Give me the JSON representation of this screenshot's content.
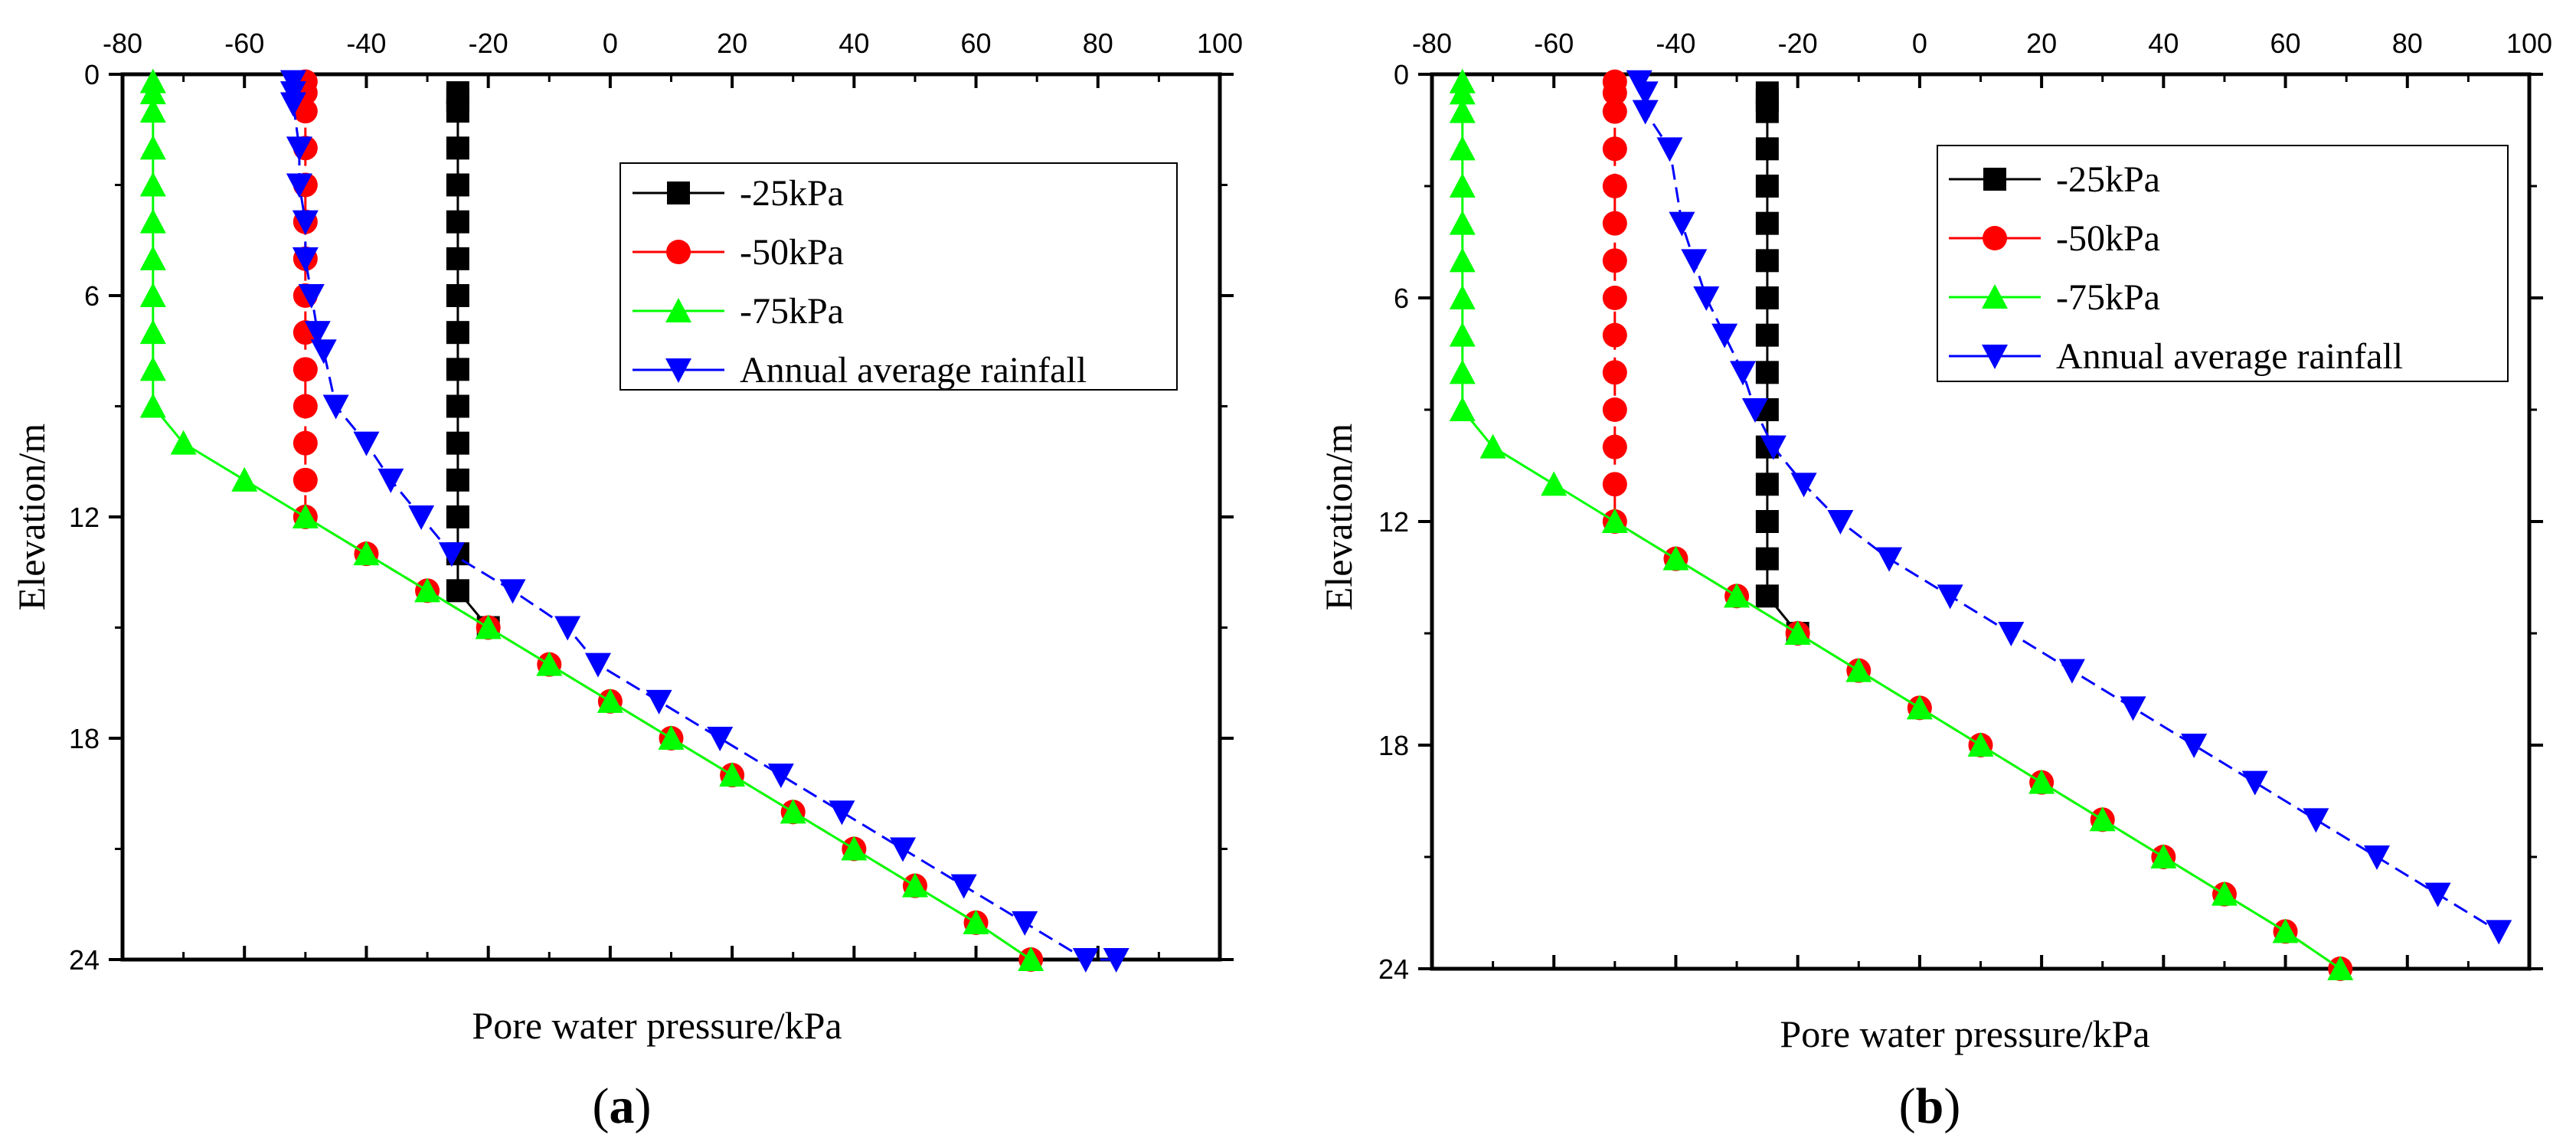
{
  "figure_labels": {
    "a_open": "(",
    "a_letter": "a",
    "a_close": ")",
    "b_open": "(",
    "b_letter": "b",
    "b_close": ")"
  },
  "colors": {
    "-25kPa": "#000000",
    "-50kPa": "#ff0000",
    "-75kPa": "#00ff00",
    "Annual average rainfall": "#0000ff"
  },
  "chart_data": [
    {
      "panel": "a",
      "type": "line",
      "xlabel": "Pore water pressure/kPa",
      "ylabel": "Elevation/m",
      "xlim": [
        -80,
        100
      ],
      "ylim": [
        0,
        24
      ],
      "x_ticks": [
        -80,
        -60,
        -40,
        -20,
        0,
        20,
        40,
        60,
        80,
        100
      ],
      "y_ticks": [
        0,
        6,
        12,
        18,
        24
      ],
      "legend_position": "top-right",
      "series": [
        {
          "name": "-25kPa",
          "marker": "square",
          "dash": "solid",
          "points": [
            [
              -25,
              0.5
            ],
            [
              -25,
              0.7
            ],
            [
              -25,
              1
            ],
            [
              -25,
              2
            ],
            [
              -25,
              3
            ],
            [
              -25,
              4
            ],
            [
              -25,
              5
            ],
            [
              -25,
              6
            ],
            [
              -25,
              7
            ],
            [
              -25,
              8
            ],
            [
              -25,
              9
            ],
            [
              -25,
              10
            ],
            [
              -25,
              11
            ],
            [
              -25,
              12
            ],
            [
              -25,
              13
            ],
            [
              -25,
              14
            ],
            [
              -20,
              15
            ]
          ]
        },
        {
          "name": "-50kPa",
          "marker": "circle",
          "dash": "dashed",
          "points": [
            [
              -50,
              0.2
            ],
            [
              -50,
              0.5
            ],
            [
              -50,
              1
            ],
            [
              -50,
              2
            ],
            [
              -50,
              3
            ],
            [
              -50,
              4
            ],
            [
              -50,
              5
            ],
            [
              -50,
              6
            ],
            [
              -50,
              7
            ],
            [
              -50,
              8
            ],
            [
              -50,
              9
            ],
            [
              -50,
              10
            ],
            [
              -50,
              11
            ],
            [
              -50,
              12
            ],
            [
              -40,
              13
            ],
            [
              -30,
              14
            ],
            [
              -20,
              15
            ],
            [
              -10,
              16
            ],
            [
              0,
              17
            ],
            [
              10,
              18
            ],
            [
              20,
              19
            ],
            [
              30,
              20
            ],
            [
              40,
              21
            ],
            [
              50,
              22
            ],
            [
              60,
              23
            ],
            [
              69,
              24
            ]
          ]
        },
        {
          "name": "-75kPa",
          "marker": "triangle-up",
          "dash": "solid",
          "points": [
            [
              -75,
              0.2
            ],
            [
              -75,
              0.5
            ],
            [
              -75,
              1
            ],
            [
              -75,
              2
            ],
            [
              -75,
              3
            ],
            [
              -75,
              4
            ],
            [
              -75,
              5
            ],
            [
              -75,
              6
            ],
            [
              -75,
              7
            ],
            [
              -75,
              8
            ],
            [
              -75,
              9
            ],
            [
              -70,
              10
            ],
            [
              -60,
              11
            ],
            [
              -50,
              12
            ],
            [
              -40,
              13
            ],
            [
              -30,
              14
            ],
            [
              -20,
              15
            ],
            [
              -10,
              16
            ],
            [
              0,
              17
            ],
            [
              10,
              18
            ],
            [
              20,
              19
            ],
            [
              30,
              20
            ],
            [
              40,
              21
            ],
            [
              50,
              22
            ],
            [
              60,
              23
            ],
            [
              69,
              24
            ]
          ]
        },
        {
          "name": "Annual average rainfall",
          "marker": "triangle-down",
          "dash": "dashed",
          "points": [
            [
              -52,
              0.2
            ],
            [
              -52,
              0.5
            ],
            [
              -52,
              0.8
            ],
            [
              -51,
              2
            ],
            [
              -51,
              3
            ],
            [
              -50,
              4
            ],
            [
              -50,
              5
            ],
            [
              -49,
              6
            ],
            [
              -48,
              7
            ],
            [
              -47,
              7.5
            ],
            [
              -45,
              9
            ],
            [
              -40,
              10
            ],
            [
              -36,
              11
            ],
            [
              -31,
              12
            ],
            [
              -26,
              13
            ],
            [
              -16,
              14
            ],
            [
              -7,
              15
            ],
            [
              -2,
              16
            ],
            [
              8,
              17
            ],
            [
              18,
              18
            ],
            [
              28,
              19
            ],
            [
              38,
              20
            ],
            [
              48,
              21
            ],
            [
              58,
              22
            ],
            [
              68,
              23
            ],
            [
              78,
              24
            ],
            [
              83,
              24
            ]
          ]
        }
      ]
    },
    {
      "panel": "b",
      "type": "line",
      "xlabel": "Pore water pressure/kPa",
      "ylabel": "Elevation/m",
      "xlim": [
        -80,
        100
      ],
      "ylim": [
        0,
        24
      ],
      "x_ticks": [
        -80,
        -60,
        -40,
        -20,
        0,
        20,
        40,
        60,
        80,
        100
      ],
      "y_ticks": [
        0,
        6,
        12,
        18,
        24
      ],
      "legend_position": "top-right",
      "series": [
        {
          "name": "-25kPa",
          "marker": "square",
          "dash": "solid",
          "points": [
            [
              -25,
              0.5
            ],
            [
              -25,
              0.7
            ],
            [
              -25,
              1
            ],
            [
              -25,
              2
            ],
            [
              -25,
              3
            ],
            [
              -25,
              4
            ],
            [
              -25,
              5
            ],
            [
              -25,
              6
            ],
            [
              -25,
              7
            ],
            [
              -25,
              8
            ],
            [
              -25,
              9
            ],
            [
              -25,
              10
            ],
            [
              -25,
              11
            ],
            [
              -25,
              12
            ],
            [
              -25,
              13
            ],
            [
              -25,
              14
            ],
            [
              -20,
              15
            ]
          ]
        },
        {
          "name": "-50kPa",
          "marker": "circle",
          "dash": "dashed",
          "points": [
            [
              -50,
              0.2
            ],
            [
              -50,
              0.5
            ],
            [
              -50,
              1
            ],
            [
              -50,
              2
            ],
            [
              -50,
              3
            ],
            [
              -50,
              4
            ],
            [
              -50,
              5
            ],
            [
              -50,
              6
            ],
            [
              -50,
              7
            ],
            [
              -50,
              8
            ],
            [
              -50,
              9
            ],
            [
              -50,
              10
            ],
            [
              -50,
              11
            ],
            [
              -50,
              12
            ],
            [
              -40,
              13
            ],
            [
              -30,
              14
            ],
            [
              -20,
              15
            ],
            [
              -10,
              16
            ],
            [
              0,
              17
            ],
            [
              10,
              18
            ],
            [
              20,
              19
            ],
            [
              30,
              20
            ],
            [
              40,
              21
            ],
            [
              50,
              22
            ],
            [
              60,
              23
            ],
            [
              69,
              24
            ]
          ]
        },
        {
          "name": "-75kPa",
          "marker": "triangle-up",
          "dash": "solid",
          "points": [
            [
              -75,
              0.2
            ],
            [
              -75,
              0.5
            ],
            [
              -75,
              1
            ],
            [
              -75,
              2
            ],
            [
              -75,
              3
            ],
            [
              -75,
              4
            ],
            [
              -75,
              5
            ],
            [
              -75,
              6
            ],
            [
              -75,
              7
            ],
            [
              -75,
              8
            ],
            [
              -75,
              9
            ],
            [
              -70,
              10
            ],
            [
              -60,
              11
            ],
            [
              -50,
              12
            ],
            [
              -40,
              13
            ],
            [
              -30,
              14
            ],
            [
              -20,
              15
            ],
            [
              -10,
              16
            ],
            [
              0,
              17
            ],
            [
              10,
              18
            ],
            [
              20,
              19
            ],
            [
              30,
              20
            ],
            [
              40,
              21
            ],
            [
              50,
              22
            ],
            [
              60,
              23
            ],
            [
              69,
              24
            ]
          ]
        },
        {
          "name": "Annual average rainfall",
          "marker": "triangle-down",
          "dash": "dashed",
          "points": [
            [
              -46,
              0.2
            ],
            [
              -45,
              0.5
            ],
            [
              -45,
              1
            ],
            [
              -41,
              2
            ],
            [
              -39,
              4
            ],
            [
              -37,
              5
            ],
            [
              -35,
              6
            ],
            [
              -32,
              7
            ],
            [
              -29,
              8
            ],
            [
              -27,
              9
            ],
            [
              -24,
              10
            ],
            [
              -19,
              11
            ],
            [
              -13,
              12
            ],
            [
              -5,
              13
            ],
            [
              5,
              14
            ],
            [
              15,
              15
            ],
            [
              25,
              16
            ],
            [
              35,
              17
            ],
            [
              45,
              18
            ],
            [
              55,
              19
            ],
            [
              65,
              20
            ],
            [
              75,
              21
            ],
            [
              85,
              22
            ],
            [
              95,
              23
            ]
          ]
        }
      ]
    }
  ]
}
